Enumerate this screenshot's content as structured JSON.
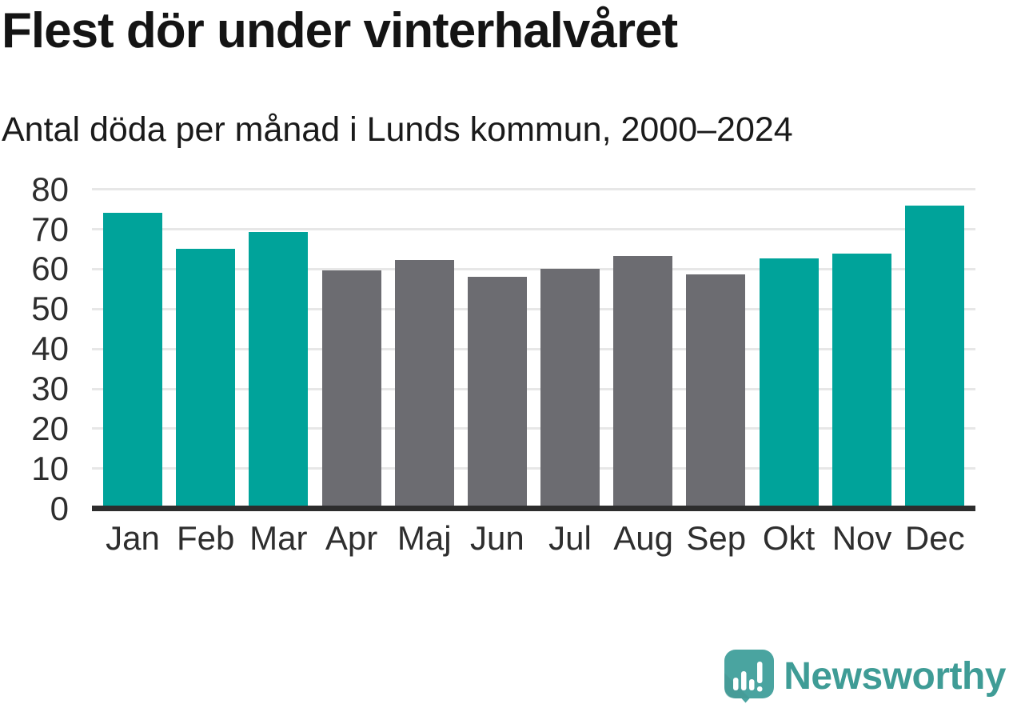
{
  "header": {
    "title": "Flest dör under vinterhalvåret",
    "subtitle": "Antal döda per månad i Lunds kommun, 2000–2024"
  },
  "chart_data": {
    "type": "bar",
    "title": "Flest dör under vinterhalvåret",
    "subtitle": "Antal döda per månad i Lunds kommun, 2000–2024",
    "categories": [
      "Jan",
      "Feb",
      "Mar",
      "Apr",
      "Maj",
      "Jun",
      "Jul",
      "Aug",
      "Sep",
      "Okt",
      "Nov",
      "Dec"
    ],
    "values": [
      73.5,
      64.5,
      68.7,
      59.0,
      61.6,
      57.4,
      59.5,
      62.6,
      58.0,
      62.0,
      63.2,
      75.3
    ],
    "bar_color_keys": [
      "winter",
      "winter",
      "winter",
      "summer",
      "summer",
      "summer",
      "summer",
      "summer",
      "summer",
      "winter",
      "winter",
      "winter"
    ],
    "colors": {
      "winter": "#00a39a",
      "summer": "#6c6c71"
    },
    "xlabel": "",
    "ylabel": "",
    "ylim": [
      0,
      80
    ],
    "yticks": [
      0,
      10,
      20,
      30,
      40,
      50,
      60,
      70,
      80
    ],
    "grid": "horizontal",
    "legend": "none",
    "axis_line_color": "#2d2d2d",
    "gridline_color": "#e7e7e7"
  },
  "footer": {
    "brand": "Newsworthy",
    "brand_color": "#3f9c96",
    "logo_icon": "newsworthy-bubble-chart-icon",
    "logo_icon_color": "#4aa4a0"
  }
}
